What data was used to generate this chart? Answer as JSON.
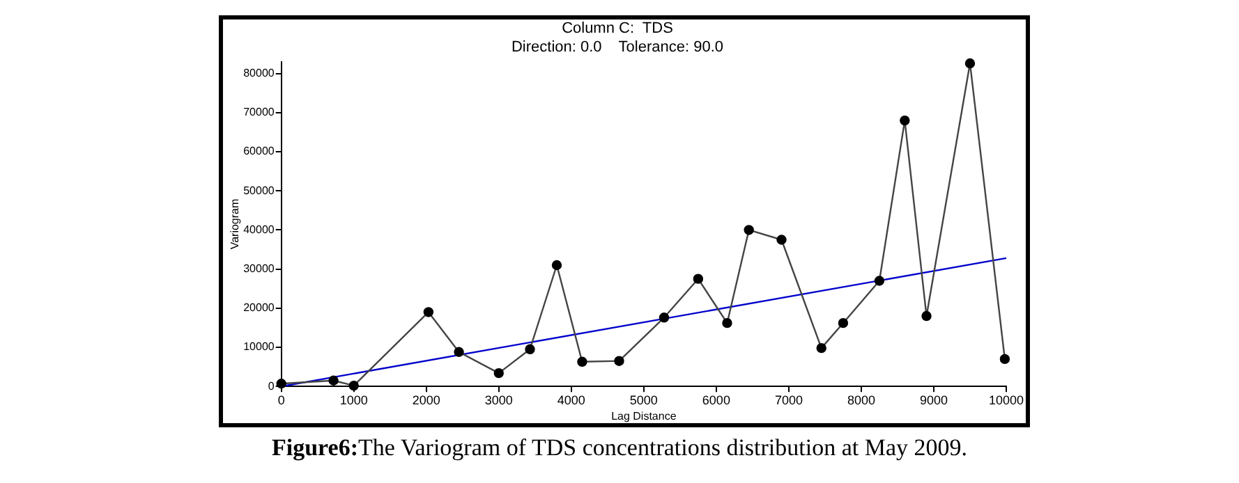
{
  "chart_data": {
    "type": "line",
    "title": "Column C:  TDS",
    "subtitle": "Direction: 0.0    Tolerance: 90.0",
    "xlabel": "Lag Distance",
    "ylabel": "Variogram",
    "series": [
      {
        "color": "#444444",
        "marker": "circle",
        "x": [
          0,
          720,
          1000,
          2030,
          2450,
          3000,
          3430,
          3800,
          4150,
          4660,
          5280,
          5750,
          6150,
          6450,
          6900,
          7450,
          7750,
          8250,
          8600,
          8900,
          9500,
          9980
        ],
        "values": [
          700,
          1500,
          200,
          19000,
          8800,
          3400,
          9500,
          31000,
          6300,
          6500,
          17600,
          27500,
          16200,
          40000,
          37500,
          9800,
          16200,
          27000,
          68000,
          18000,
          82600,
          7000
        ]
      },
      {
        "color": "#0000cc",
        "marker": "none",
        "x": [
          0,
          10000
        ],
        "values": [
          0,
          32800
        ]
      }
    ],
    "xlim": [
      0,
      10000
    ],
    "xticks": [
      0,
      1000,
      2000,
      3000,
      4000,
      5000,
      6000,
      7000,
      8000,
      9000,
      10000
    ],
    "ylim": [
      0,
      83000
    ],
    "yticks": [
      0,
      10000,
      20000,
      30000,
      40000,
      50000,
      60000,
      70000,
      80000
    ],
    "grid": false,
    "legend": false,
    "annotations": [
      "Figure6:The Variogram of TDS concentrations distribution at May 2009."
    ]
  }
}
